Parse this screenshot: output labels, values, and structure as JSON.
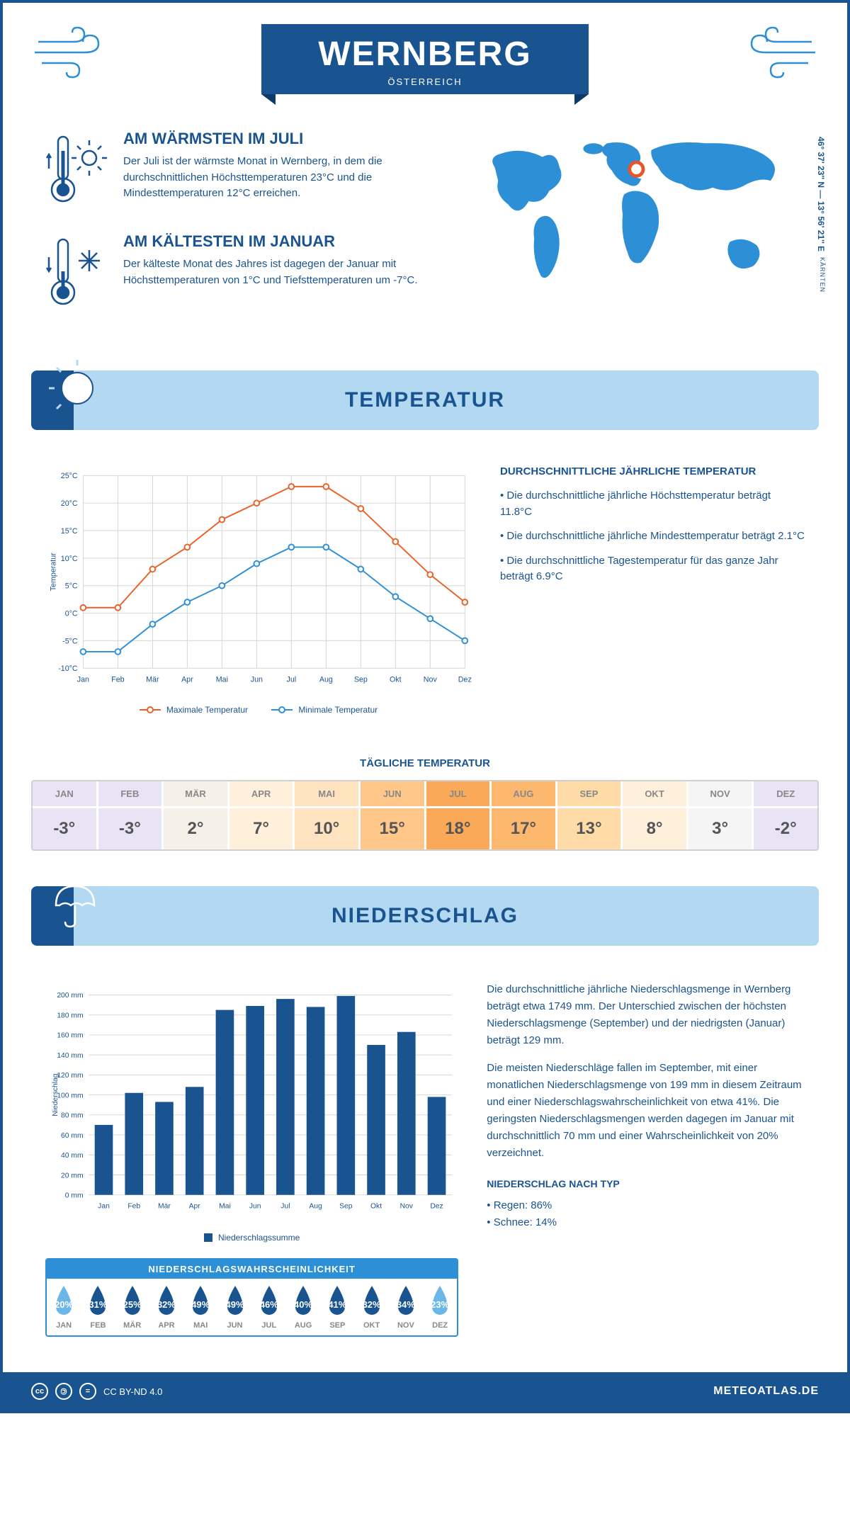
{
  "header": {
    "title": "WERNBERG",
    "subtitle": "ÖSTERREICH",
    "coords": "46° 37' 23'' N — 13° 56' 21'' E",
    "region": "KÄRNTEN"
  },
  "warmest": {
    "title": "AM WÄRMSTEN IM JULI",
    "text": "Der Juli ist der wärmste Monat in Wernberg, in dem die durchschnittlichen Höchsttemperaturen 23°C und die Mindesttemperaturen 12°C erreichen."
  },
  "coldest": {
    "title": "AM KÄLTESTEN IM JANUAR",
    "text": "Der kälteste Monat des Jahres ist dagegen der Januar mit Höchsttemperaturen von 1°C und Tiefsttemperaturen um -7°C."
  },
  "temp_section": {
    "banner": "TEMPERATUR",
    "info_heading": "DURCHSCHNITTLICHE JÄHRLICHE TEMPERATUR",
    "bullet1": "• Die durchschnittliche jährliche Höchsttemperatur beträgt 11.8°C",
    "bullet2": "• Die durchschnittliche jährliche Mindesttemperatur beträgt 2.1°C",
    "bullet3": "• Die durchschnittliche Tagestemperatur für das ganze Jahr beträgt 6.9°C",
    "chart": {
      "type": "line",
      "months": [
        "Jan",
        "Feb",
        "Mär",
        "Apr",
        "Mai",
        "Jun",
        "Jul",
        "Aug",
        "Sep",
        "Okt",
        "Nov",
        "Dez"
      ],
      "max_series": {
        "label": "Maximale Temperatur",
        "color": "#e8622a",
        "values": [
          1,
          1,
          8,
          12,
          17,
          20,
          23,
          23,
          19,
          13,
          7,
          2
        ]
      },
      "min_series": {
        "label": "Minimale Temperatur",
        "color": "#2d8fd6",
        "values": [
          -7,
          -7,
          -2,
          2,
          5,
          9,
          12,
          12,
          8,
          3,
          -1,
          -5
        ]
      },
      "ylim": [
        -10,
        25
      ],
      "ytick_step": 5,
      "y_title": "Temperatur",
      "ytick_suffix": "°C",
      "grid_color": "#d5d5d5"
    },
    "daily_title": "TÄGLICHE TEMPERATUR",
    "daily": {
      "months": [
        "JAN",
        "FEB",
        "MÄR",
        "APR",
        "MAI",
        "JUN",
        "JUL",
        "AUG",
        "SEP",
        "OKT",
        "NOV",
        "DEZ"
      ],
      "values": [
        "-3°",
        "-3°",
        "2°",
        "7°",
        "10°",
        "15°",
        "18°",
        "17°",
        "13°",
        "8°",
        "3°",
        "-2°"
      ],
      "colors": [
        "#e8e3f5",
        "#e8e3f5",
        "#f5f1e8",
        "#fff0dc",
        "#ffe2c0",
        "#ffc88a",
        "#f9a957",
        "#fcb86e",
        "#ffdba8",
        "#fff0dc",
        "#f5f5f5",
        "#e8e3f5"
      ]
    }
  },
  "precip_section": {
    "banner": "NIEDERSCHLAG",
    "text1": "Die durchschnittliche jährliche Niederschlagsmenge in Wernberg beträgt etwa 1749 mm. Der Unterschied zwischen der höchsten Niederschlagsmenge (September) und der niedrigsten (Januar) beträgt 129 mm.",
    "text2": "Die meisten Niederschläge fallen im September, mit einer monatlichen Niederschlagsmenge von 199 mm in diesem Zeitraum und einer Niederschlagswahrscheinlichkeit von etwa 41%. Die geringsten Niederschlagsmengen werden dagegen im Januar mit durchschnittlich 70 mm und einer Wahrscheinlichkeit von 20% verzeichnet.",
    "type_heading": "NIEDERSCHLAG NACH TYP",
    "type1": "• Regen: 86%",
    "type2": "• Schnee: 14%",
    "chart": {
      "type": "bar",
      "months": [
        "Jan",
        "Feb",
        "Mär",
        "Apr",
        "Mai",
        "Jun",
        "Jul",
        "Aug",
        "Sep",
        "Okt",
        "Nov",
        "Dez"
      ],
      "values": [
        70,
        102,
        93,
        108,
        185,
        189,
        196,
        188,
        199,
        150,
        163,
        98
      ],
      "color": "#1a5490",
      "legend": "Niederschlagssumme",
      "y_title": "Niederschlag",
      "ylim": [
        0,
        200
      ],
      "ytick_step": 20,
      "ytick_suffix": " mm",
      "grid_color": "#d5d5d5"
    },
    "prob": {
      "heading": "NIEDERSCHLAGSWAHRSCHEINLICHKEIT",
      "months": [
        "JAN",
        "FEB",
        "MÄR",
        "APR",
        "MAI",
        "JUN",
        "JUL",
        "AUG",
        "SEP",
        "OKT",
        "NOV",
        "DEZ"
      ],
      "values": [
        "20%",
        "31%",
        "25%",
        "32%",
        "49%",
        "49%",
        "46%",
        "40%",
        "41%",
        "32%",
        "34%",
        "23%"
      ],
      "colors": [
        "#6bb8e8",
        "#1a5490",
        "#1a5490",
        "#1a5490",
        "#1a5490",
        "#1a5490",
        "#1a5490",
        "#1a5490",
        "#1a5490",
        "#1a5490",
        "#1a5490",
        "#6bb8e8"
      ]
    }
  },
  "footer": {
    "license": "CC BY-ND 4.0",
    "site": "METEOATLAS.DE"
  }
}
